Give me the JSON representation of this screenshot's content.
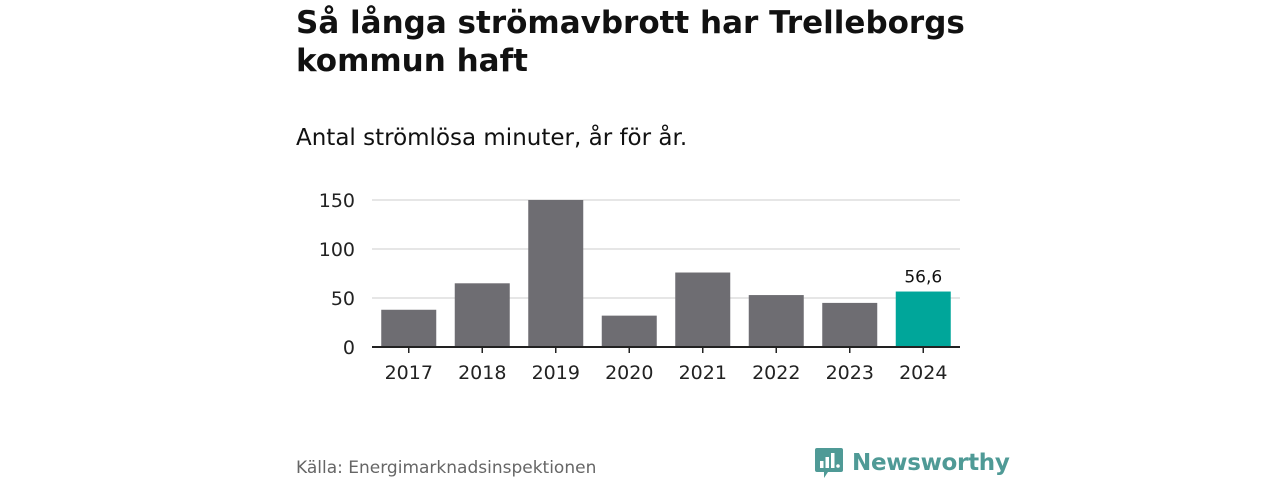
{
  "title": "Så långa strömavbrott har Trelleborgs kommun haft",
  "subtitle": "Antal strömlösa minuter, år för år.",
  "source": "Källa: Energimarknadsinspektionen",
  "brand": {
    "name": "Newsworthy",
    "icon": "newsworthy-logo-icon",
    "color": "#4f9a96"
  },
  "colors": {
    "bar": "#6e6d72",
    "highlight": "#00a69a",
    "grid": "#dddddd",
    "axis": "#222222"
  },
  "chart_data": {
    "type": "bar",
    "title": "Så långa strömavbrott har Trelleborgs kommun haft",
    "subtitle": "Antal strömlösa minuter, år för år.",
    "xlabel": "",
    "ylabel": "",
    "categories": [
      "2017",
      "2018",
      "2019",
      "2020",
      "2021",
      "2022",
      "2023",
      "2024"
    ],
    "values": [
      38,
      65,
      150,
      32,
      76,
      53,
      45,
      56.6
    ],
    "highlight_index": 7,
    "highlight_label": "56,6",
    "ylim": [
      0,
      150
    ],
    "yticks": [
      0,
      50,
      100,
      150
    ],
    "ytick_labels": [
      "0",
      "50",
      "100",
      "150"
    ],
    "grid": true,
    "legend": "none"
  }
}
